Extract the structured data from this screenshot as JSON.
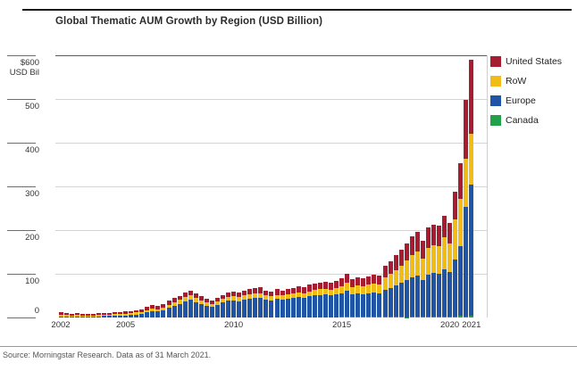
{
  "title": "Global Thematic AUM Growth by Region (USD Billion)",
  "source": "Source: Morningstar Research. Data as of 31 March 2021.",
  "colors": {
    "united_states": "#A61C30",
    "row": "#F0BC15",
    "europe": "#1F55A4",
    "canada": "#22A14B",
    "gridline": "#d4d4d4",
    "top_gridline": "#5a5a5a"
  },
  "legend": {
    "items": [
      {
        "label": "United States",
        "color": "#A61C30"
      },
      {
        "label": "RoW",
        "color": "#F0BC15"
      },
      {
        "label": "Europe",
        "color": "#1F55A4"
      },
      {
        "label": "Canada",
        "color": "#22A14B"
      }
    ]
  },
  "y_axis": {
    "ticks": [
      {
        "label": "$600",
        "sub": "USD Bil",
        "value": 600
      },
      {
        "label": "500",
        "value": 500
      },
      {
        "label": "400",
        "value": 400
      },
      {
        "label": "300",
        "value": 300
      },
      {
        "label": "200",
        "value": 200
      },
      {
        "label": "100",
        "value": 100
      },
      {
        "label": "0",
        "value": 0
      }
    ]
  },
  "x_axis": {
    "labels": [
      {
        "label": "2002",
        "bar_index": 0
      },
      {
        "label": "2005",
        "bar_index": 12
      },
      {
        "label": "2010",
        "bar_index": 32
      },
      {
        "label": "2015",
        "bar_index": 52
      },
      {
        "label": "2020",
        "bar_index": 72
      },
      {
        "label": "2021",
        "bar_index": 76
      }
    ]
  },
  "chart_data": {
    "type": "bar",
    "stacked": true,
    "title": "Global Thematic AUM Growth by Region (USD Billion)",
    "ylabel": "USD Bil",
    "ylim": [
      0,
      600
    ],
    "legend_position": "right",
    "grid": "horizontal",
    "frequency": "quarterly",
    "x": [
      "2002 Q1",
      "2002 Q2",
      "2002 Q3",
      "2002 Q4",
      "2003 Q1",
      "2003 Q2",
      "2003 Q3",
      "2003 Q4",
      "2004 Q1",
      "2004 Q2",
      "2004 Q3",
      "2004 Q4",
      "2005 Q1",
      "2005 Q2",
      "2005 Q3",
      "2005 Q4",
      "2006 Q1",
      "2006 Q2",
      "2006 Q3",
      "2006 Q4",
      "2007 Q1",
      "2007 Q2",
      "2007 Q3",
      "2007 Q4",
      "2008 Q1",
      "2008 Q2",
      "2008 Q3",
      "2008 Q4",
      "2009 Q1",
      "2009 Q2",
      "2009 Q3",
      "2009 Q4",
      "2010 Q1",
      "2010 Q2",
      "2010 Q3",
      "2010 Q4",
      "2011 Q1",
      "2011 Q2",
      "2011 Q3",
      "2011 Q4",
      "2012 Q1",
      "2012 Q2",
      "2012 Q3",
      "2012 Q4",
      "2013 Q1",
      "2013 Q2",
      "2013 Q3",
      "2013 Q4",
      "2014 Q1",
      "2014 Q2",
      "2014 Q3",
      "2014 Q4",
      "2015 Q1",
      "2015 Q2",
      "2015 Q3",
      "2015 Q4",
      "2016 Q1",
      "2016 Q2",
      "2016 Q3",
      "2016 Q4",
      "2017 Q1",
      "2017 Q2",
      "2017 Q3",
      "2017 Q4",
      "2018 Q1",
      "2018 Q2",
      "2018 Q3",
      "2018 Q4",
      "2019 Q1",
      "2019 Q2",
      "2019 Q3",
      "2019 Q4",
      "2020 Q1",
      "2020 Q2",
      "2020 Q3",
      "2020 Q4",
      "2021 Q1"
    ],
    "series": [
      {
        "name": "Canada",
        "color": "#22A14B",
        "values": [
          0,
          0,
          0,
          0,
          0,
          0,
          0,
          0,
          0,
          0,
          0,
          0,
          0,
          0,
          0,
          0,
          0,
          0,
          0,
          0,
          0,
          0,
          0,
          0,
          0,
          0,
          0,
          0,
          0,
          0,
          0,
          0,
          0,
          0,
          0,
          0,
          0,
          0,
          0,
          0,
          0,
          0,
          0,
          0,
          0,
          0,
          0,
          0,
          0,
          0,
          0,
          0,
          1,
          1,
          1,
          1,
          1,
          1,
          1,
          1,
          1,
          1,
          1,
          1,
          1,
          1,
          1,
          1,
          2,
          2,
          2,
          2,
          2,
          2,
          3,
          3,
          4
        ]
      },
      {
        "name": "Europe",
        "color": "#1F55A4",
        "values": [
          3,
          3,
          2,
          3,
          2,
          2,
          2,
          3,
          4,
          4,
          4,
          5,
          5,
          6,
          7,
          8,
          12,
          15,
          14,
          17,
          22,
          27,
          31,
          37,
          40,
          35,
          31,
          27,
          25,
          29,
          34,
          38,
          39,
          37,
          40,
          43,
          44,
          45,
          40,
          39,
          42,
          40,
          43,
          44,
          47,
          45,
          48,
          50,
          52,
          53,
          51,
          53,
          55,
          60,
          52,
          55,
          53,
          55,
          57,
          55,
          62,
          66,
          72,
          78,
          84,
          91,
          95,
          85,
          96,
          99,
          98,
          108,
          102,
          130,
          160,
          250,
          300
        ]
      },
      {
        "name": "RoW",
        "color": "#F0BC15",
        "values": [
          4,
          4,
          3,
          3,
          3,
          3,
          3,
          3,
          3,
          3,
          4,
          4,
          4,
          4,
          5,
          5,
          5,
          6,
          5,
          6,
          7,
          8,
          9,
          10,
          10,
          9,
          8,
          7,
          6,
          7,
          8,
          9,
          10,
          9,
          10,
          10,
          11,
          11,
          10,
          9,
          10,
          10,
          10,
          11,
          11,
          11,
          12,
          13,
          13,
          13,
          13,
          14,
          16,
          19,
          17,
          18,
          18,
          19,
          20,
          20,
          29,
          32,
          36,
          40,
          45,
          50,
          54,
          48,
          62,
          64,
          64,
          73,
          66,
          92,
          108,
          110,
          116
        ]
      },
      {
        "name": "United States",
        "color": "#A61C30",
        "values": [
          5,
          4,
          4,
          4,
          3,
          3,
          4,
          4,
          4,
          4,
          4,
          4,
          5,
          5,
          5,
          6,
          7,
          7,
          7,
          8,
          9,
          10,
          10,
          11,
          12,
          11,
          9,
          8,
          7,
          9,
          10,
          11,
          11,
          11,
          12,
          13,
          13,
          14,
          12,
          12,
          13,
          12,
          13,
          13,
          14,
          14,
          15,
          15,
          15,
          16,
          16,
          17,
          18,
          20,
          18,
          18,
          18,
          19,
          20,
          20,
          26,
          29,
          33,
          36,
          39,
          43,
          46,
          41,
          46,
          47,
          46,
          50,
          46,
          64,
          82,
          135,
          170
        ]
      }
    ]
  }
}
